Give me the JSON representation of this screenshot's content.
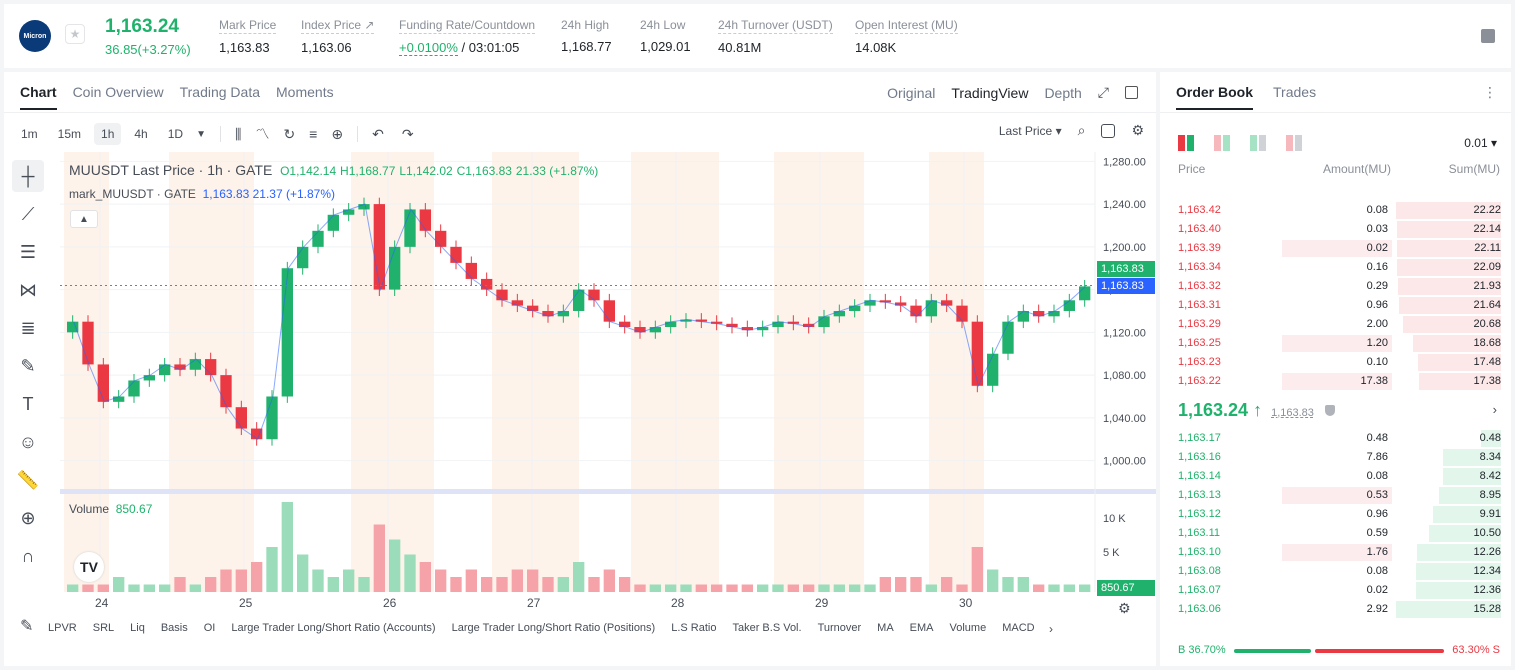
{
  "header": {
    "logo_text": "Micron",
    "last_price": "1,163.24",
    "change": "36.85(+3.27%)",
    "stats": [
      {
        "label": "Mark Price",
        "value": "1,163.83"
      },
      {
        "label": "Index Price ↗",
        "value": "1,163.06"
      },
      {
        "label": "Funding Rate/Countdown",
        "value_green": "+0.0100%",
        "value": "/ 03:01:05"
      },
      {
        "label": "24h High",
        "value": "1,168.77"
      },
      {
        "label": "24h Low",
        "value": "1,029.01"
      },
      {
        "label": "24h Turnover (USDT)",
        "value": "40.81M"
      },
      {
        "label": "Open Interest (MU)",
        "value": "14.08K"
      }
    ]
  },
  "chart_panel": {
    "tabs": [
      "Chart",
      "Coin Overview",
      "Trading Data",
      "Moments"
    ],
    "view_tabs": [
      "Original",
      "TradingView",
      "Depth"
    ],
    "timeframes": [
      "1m",
      "15m",
      "1h",
      "4h",
      "1D"
    ],
    "price_type": "Last Price ▾",
    "legend_title": "MUUSDT Last Price · 1h · GATE",
    "legend_ohlc": {
      "o": "O1,142.14",
      "h": "H1,168.77",
      "l": "L1,142.02",
      "c": "C1,163.83",
      "chg": "21.33 (+1.87%)"
    },
    "mark_legend": {
      "label": "mark_MUUSDT · GATE",
      "value": "1,163.83 21.37 (+1.87%)"
    },
    "volume_legend": {
      "label": "Volume",
      "value": "850.67"
    },
    "price_tag_last": "1,163.83",
    "price_tag_mark": "1,163.83",
    "volume_tag": "850.67",
    "indicators": [
      "LPVR",
      "SRL",
      "Liq",
      "Basis",
      "OI",
      "Large Trader Long/Short Ratio (Accounts)",
      "Large Trader Long/Short Ratio (Positions)",
      "L.S Ratio",
      "Taker B.S Vol.",
      "Turnover",
      "MA",
      "EMA",
      "Volume",
      "MACD"
    ]
  },
  "chart_data": {
    "type": "line",
    "title": "MUUSDT Last Price · 1h · GATE",
    "x_ticks": [
      "24",
      "25",
      "26",
      "27",
      "28",
      "29",
      "30"
    ],
    "y_ticks": [
      "1,280.00",
      "1,240.00",
      "1,200.00",
      "1,160.00",
      "1,120.00",
      "1,080.00",
      "1,040.00",
      "1,000.00"
    ],
    "volume_ticks": [
      "10 K",
      "5 K"
    ],
    "ylim": [
      980,
      1285
    ],
    "series": [
      {
        "values": [
          1130,
          1090,
          1055,
          1060,
          1075,
          1080,
          1090,
          1085,
          1095,
          1080,
          1050,
          1030,
          1020,
          1060,
          1180,
          1200,
          1215,
          1230,
          1235,
          1240,
          1160,
          1200,
          1235,
          1215,
          1200,
          1185,
          1170,
          1160,
          1150,
          1145,
          1140,
          1135,
          1140,
          1160,
          1150,
          1130,
          1125,
          1120,
          1125,
          1130,
          1132,
          1130,
          1128,
          1125,
          1122,
          1125,
          1130,
          1128,
          1125,
          1135,
          1140,
          1145,
          1150,
          1148,
          1145,
          1135,
          1150,
          1145,
          1130,
          1070,
          1100,
          1130,
          1140,
          1135,
          1140,
          1150,
          1163
        ]
      }
    ],
    "volume_values": [
      1,
      1,
      1,
      2,
      1,
      1,
      1,
      2,
      1,
      2,
      3,
      3,
      4,
      6,
      12,
      5,
      3,
      2,
      3,
      2,
      9,
      7,
      5,
      4,
      3,
      2,
      3,
      2,
      2,
      3,
      3,
      2,
      2,
      4,
      2,
      3,
      2,
      1,
      1,
      1,
      1,
      1,
      1,
      1,
      1,
      1,
      1,
      1,
      1,
      1,
      1,
      1,
      1,
      2,
      2,
      2,
      1,
      2,
      1,
      6,
      3,
      2,
      2,
      1,
      1,
      1,
      1
    ],
    "last_price": 1163.83
  },
  "order_book": {
    "tabs": [
      "Order Book",
      "Trades"
    ],
    "precision": "0.01 ▾",
    "headers": {
      "price": "Price",
      "amount": "Amount(MU)",
      "sum": "Sum(MU)"
    },
    "asks": [
      {
        "price": "1,163.42",
        "amount": "0.08",
        "sum": "22.22",
        "depth": 1.0,
        "amt": 0
      },
      {
        "price": "1,163.40",
        "amount": "0.03",
        "sum": "22.14",
        "depth": 0.99,
        "amt": 0
      },
      {
        "price": "1,163.39",
        "amount": "0.02",
        "sum": "22.11",
        "depth": 0.99,
        "amt": 0.5
      },
      {
        "price": "1,163.34",
        "amount": "0.16",
        "sum": "22.09",
        "depth": 0.99,
        "amt": 0
      },
      {
        "price": "1,163.32",
        "amount": "0.29",
        "sum": "21.93",
        "depth": 0.98,
        "amt": 0
      },
      {
        "price": "1,163.31",
        "amount": "0.96",
        "sum": "21.64",
        "depth": 0.97,
        "amt": 0
      },
      {
        "price": "1,163.29",
        "amount": "2.00",
        "sum": "20.68",
        "depth": 0.93,
        "amt": 0
      },
      {
        "price": "1,163.25",
        "amount": "1.20",
        "sum": "18.68",
        "depth": 0.84,
        "amt": 0.5
      },
      {
        "price": "1,163.23",
        "amount": "0.10",
        "sum": "17.48",
        "depth": 0.79,
        "amt": 0
      },
      {
        "price": "1,163.22",
        "amount": "17.38",
        "sum": "17.38",
        "depth": 0.78,
        "amt": 0.6
      }
    ],
    "mid_price": "1,163.24 ↑",
    "mid_mark": "1,163.83",
    "bids": [
      {
        "price": "1,163.17",
        "amount": "0.48",
        "sum": "0.48",
        "depth": 0.19,
        "amt": 0
      },
      {
        "price": "1,163.16",
        "amount": "7.86",
        "sum": "8.34",
        "depth": 0.55,
        "amt": 0
      },
      {
        "price": "1,163.14",
        "amount": "0.08",
        "sum": "8.42",
        "depth": 0.55,
        "amt": 0
      },
      {
        "price": "1,163.13",
        "amount": "0.53",
        "sum": "8.95",
        "depth": 0.59,
        "amt": 0.5
      },
      {
        "price": "1,163.12",
        "amount": "0.96",
        "sum": "9.91",
        "depth": 0.65,
        "amt": 0
      },
      {
        "price": "1,163.11",
        "amount": "0.59",
        "sum": "10.50",
        "depth": 0.69,
        "amt": 0
      },
      {
        "price": "1,163.10",
        "amount": "1.76",
        "sum": "12.26",
        "depth": 0.8,
        "amt": 0.5
      },
      {
        "price": "1,163.08",
        "amount": "0.08",
        "sum": "12.34",
        "depth": 0.81,
        "amt": 0
      },
      {
        "price": "1,163.07",
        "amount": "0.02",
        "sum": "12.36",
        "depth": 0.81,
        "amt": 0
      },
      {
        "price": "1,163.06",
        "amount": "2.92",
        "sum": "15.28",
        "depth": 1.0,
        "amt": 0
      }
    ],
    "buy_ratio": "B 36.70%",
    "sell_ratio": "63.30% S",
    "buy_fraction": 0.367
  },
  "colors": {
    "up": "#20b26c",
    "down": "#ea3943",
    "mark": "#2962ff"
  }
}
